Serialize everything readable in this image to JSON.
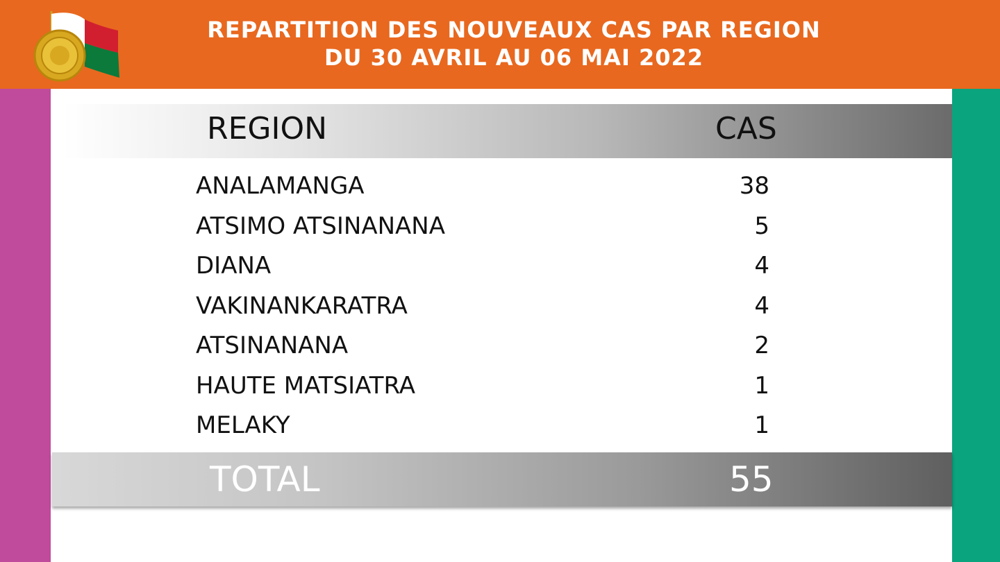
{
  "header": {
    "title_line1": "REPARTITION DES NOUVEAUX CAS PAR REGION",
    "title_line2": "DU 30 AVRIL AU 06 MAI 2022",
    "logo_icon": "madagascar-seal-flag-icon"
  },
  "table": {
    "col_region": "REGION",
    "col_cas": "CAS",
    "rows": [
      {
        "region": "ANALAMANGA",
        "cas": "38"
      },
      {
        "region": "ATSIMO ATSINANANA",
        "cas": "5"
      },
      {
        "region": "DIANA",
        "cas": "4"
      },
      {
        "region": "VAKINANKARATRA",
        "cas": "4"
      },
      {
        "region": "ATSINANANA",
        "cas": "2"
      },
      {
        "region": "HAUTE MATSIATRA",
        "cas": "1"
      },
      {
        "region": "MELAKY",
        "cas": "1"
      }
    ],
    "total_label": "TOTAL",
    "total_value": "55"
  },
  "colors": {
    "header": "#e8681f",
    "left_bar": "#c04a9c",
    "right_bar": "#0aa47e"
  }
}
